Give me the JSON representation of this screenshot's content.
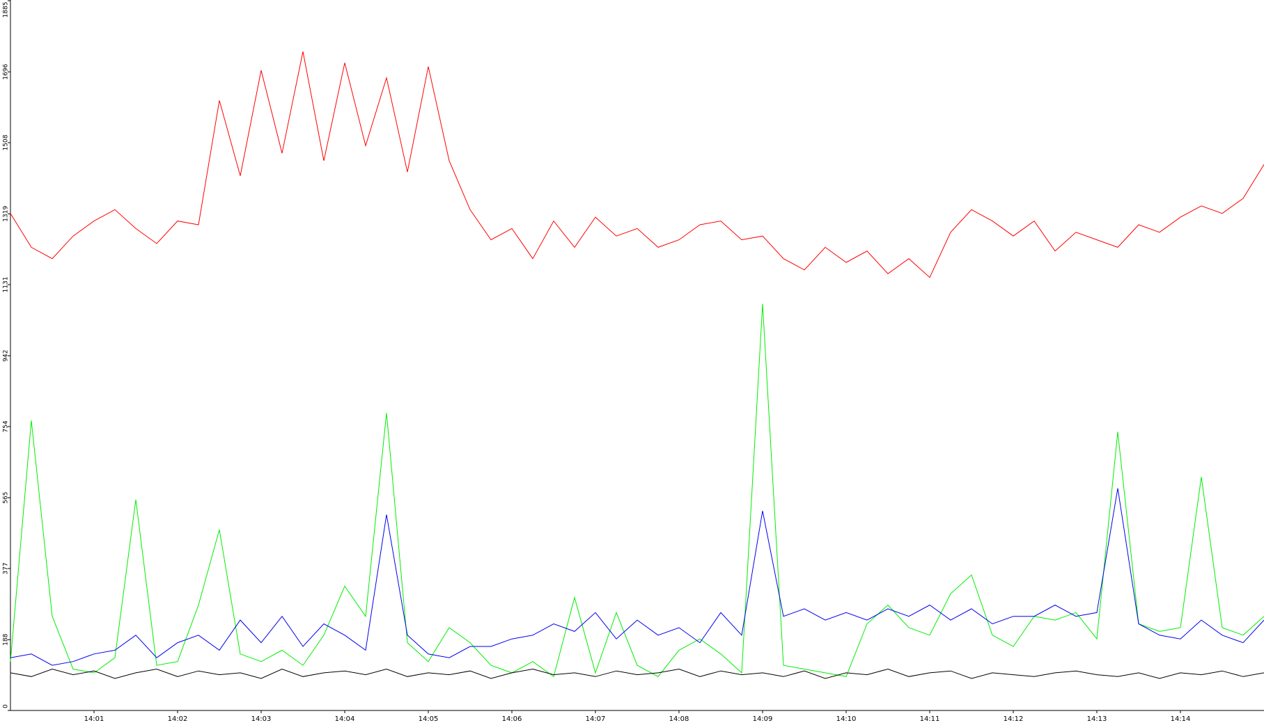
{
  "chart_data": {
    "type": "line",
    "x": [
      840,
      840.25,
      840.5,
      840.75,
      841,
      841.25,
      841.5,
      841.75,
      842,
      842.25,
      842.5,
      842.75,
      843,
      843.25,
      843.5,
      843.75,
      844,
      844.25,
      844.5,
      844.75,
      845,
      845.25,
      845.5,
      845.75,
      846,
      846.25,
      846.5,
      846.75,
      847,
      847.25,
      847.5,
      847.75,
      848,
      848.25,
      848.5,
      848.75,
      849,
      849.25,
      849.5,
      849.75,
      850,
      850.25,
      850.5,
      850.75,
      851,
      851.25,
      851.5,
      851.75,
      852,
      852.25,
      852.5,
      852.75,
      853,
      853.25,
      853.5,
      853.75,
      854,
      854.25,
      854.5,
      854.75,
      855
    ],
    "series": [
      {
        "color": "#ff0000",
        "values": [
          1320,
          1230,
          1200,
          1260,
          1300,
          1330,
          1280,
          1240,
          1300,
          1290,
          1620,
          1420,
          1700,
          1480,
          1750,
          1460,
          1720,
          1500,
          1680,
          1430,
          1710,
          1460,
          1330,
          1250,
          1280,
          1200,
          1300,
          1230,
          1310,
          1260,
          1280,
          1230,
          1250,
          1290,
          1300,
          1250,
          1260,
          1200,
          1170,
          1230,
          1190,
          1220,
          1160,
          1200,
          1150,
          1270,
          1330,
          1300,
          1260,
          1300,
          1220,
          1270,
          1250,
          1230,
          1290,
          1270,
          1310,
          1340,
          1320,
          1360,
          1450
        ]
      },
      {
        "color": "#00ee00",
        "values": [
          130,
          770,
          250,
          110,
          100,
          140,
          560,
          120,
          130,
          280,
          480,
          150,
          130,
          160,
          120,
          200,
          330,
          250,
          790,
          180,
          130,
          220,
          180,
          120,
          100,
          130,
          90,
          300,
          100,
          260,
          120,
          90,
          160,
          190,
          150,
          100,
          1080,
          120,
          110,
          100,
          90,
          230,
          280,
          220,
          200,
          310,
          360,
          200,
          170,
          250,
          240,
          260,
          190,
          740,
          230,
          210,
          220,
          620,
          220,
          200,
          250
        ]
      },
      {
        "color": "#0000ee",
        "values": [
          140,
          150,
          120,
          130,
          150,
          160,
          200,
          140,
          180,
          200,
          160,
          240,
          180,
          250,
          170,
          230,
          200,
          160,
          520,
          200,
          150,
          140,
          170,
          170,
          190,
          200,
          230,
          210,
          260,
          190,
          240,
          200,
          220,
          180,
          260,
          200,
          530,
          250,
          270,
          240,
          260,
          240,
          270,
          250,
          280,
          240,
          270,
          230,
          250,
          250,
          280,
          250,
          260,
          590,
          230,
          200,
          190,
          240,
          200,
          180,
          240
        ]
      },
      {
        "color": "#000000",
        "values": [
          100,
          90,
          110,
          95,
          105,
          85,
          100,
          110,
          90,
          105,
          95,
          100,
          85,
          110,
          90,
          100,
          105,
          95,
          110,
          90,
          100,
          95,
          105,
          85,
          100,
          110,
          95,
          100,
          90,
          105,
          95,
          100,
          110,
          90,
          105,
          95,
          100,
          90,
          105,
          85,
          100,
          95,
          110,
          90,
          100,
          105,
          85,
          100,
          95,
          90,
          100,
          105,
          95,
          90,
          100,
          85,
          100,
          95,
          105,
          90,
          100
        ]
      }
    ],
    "xlim": [
      840,
      855
    ],
    "xticks": [
      {
        "value": 841,
        "label": "14:01"
      },
      {
        "value": 842,
        "label": "14:02"
      },
      {
        "value": 843,
        "label": "14:03"
      },
      {
        "value": 844,
        "label": "14:04"
      },
      {
        "value": 845,
        "label": "14:05"
      },
      {
        "value": 846,
        "label": "14:06"
      },
      {
        "value": 847,
        "label": "14:07"
      },
      {
        "value": 848,
        "label": "14:08"
      },
      {
        "value": 849,
        "label": "14:09"
      },
      {
        "value": 850,
        "label": "14:10"
      },
      {
        "value": 851,
        "label": "14:11"
      },
      {
        "value": 852,
        "label": "14:12"
      },
      {
        "value": 853,
        "label": "14:13"
      },
      {
        "value": 854,
        "label": "14:14"
      }
    ],
    "ylim": [
      0,
      1885
    ],
    "yticks": [
      0,
      188,
      377,
      565,
      754,
      942,
      1131,
      1319,
      1508,
      1696,
      1885
    ]
  }
}
